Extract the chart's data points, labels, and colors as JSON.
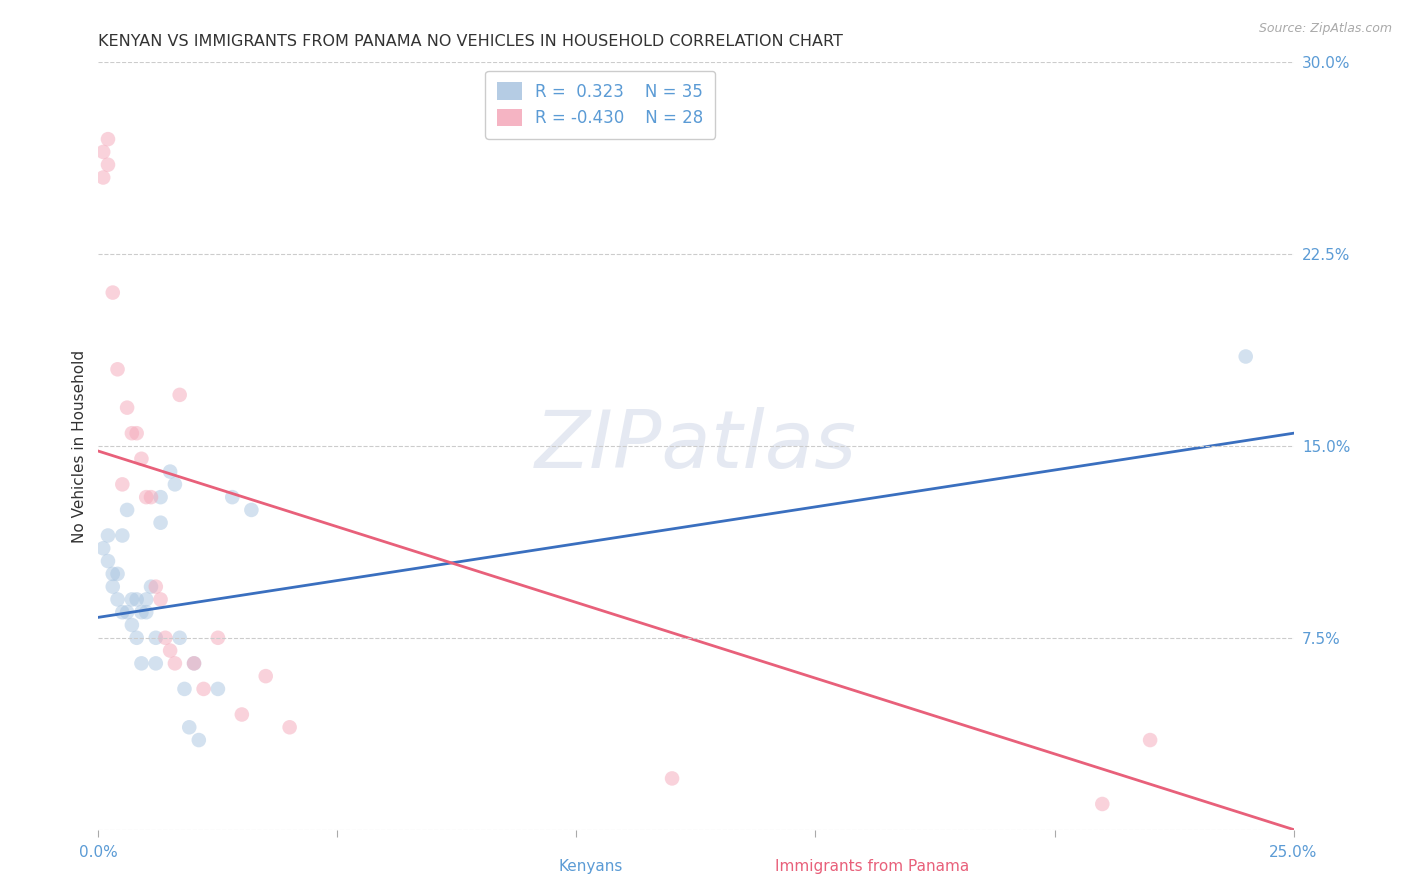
{
  "title": "KENYAN VS IMMIGRANTS FROM PANAMA NO VEHICLES IN HOUSEHOLD CORRELATION CHART",
  "source": "Source: ZipAtlas.com",
  "ylabel": "No Vehicles in Household",
  "xlabel_kenyans": "Kenyans",
  "xlabel_panama": "Immigrants from Panama",
  "xlim": [
    0.0,
    0.25
  ],
  "ylim": [
    0.0,
    0.3
  ],
  "x_ticks": [
    0.0,
    0.05,
    0.1,
    0.15,
    0.2,
    0.25
  ],
  "x_tick_labels": [
    "0.0%",
    "",
    "",
    "",
    "",
    "25.0%"
  ],
  "y_ticks": [
    0.0,
    0.075,
    0.15,
    0.225,
    0.3
  ],
  "y_tick_labels": [
    "",
    "7.5%",
    "15.0%",
    "22.5%",
    "30.0%"
  ],
  "kenyan_color": "#a8c4e0",
  "panama_color": "#f4a7b9",
  "kenyan_line_color": "#3a6fbf",
  "panama_line_color": "#e8607a",
  "legend_r_kenyan": "R =  0.323",
  "legend_n_kenyan": "N = 35",
  "legend_r_panama": "R = -0.430",
  "legend_n_panama": "N = 28",
  "kenyan_x": [
    0.001,
    0.002,
    0.002,
    0.003,
    0.003,
    0.004,
    0.004,
    0.005,
    0.005,
    0.006,
    0.006,
    0.007,
    0.007,
    0.008,
    0.008,
    0.009,
    0.009,
    0.01,
    0.01,
    0.011,
    0.012,
    0.012,
    0.013,
    0.013,
    0.015,
    0.016,
    0.017,
    0.018,
    0.019,
    0.02,
    0.021,
    0.025,
    0.028,
    0.032,
    0.24
  ],
  "kenyan_y": [
    0.11,
    0.115,
    0.105,
    0.1,
    0.095,
    0.1,
    0.09,
    0.115,
    0.085,
    0.125,
    0.085,
    0.09,
    0.08,
    0.09,
    0.075,
    0.085,
    0.065,
    0.09,
    0.085,
    0.095,
    0.075,
    0.065,
    0.13,
    0.12,
    0.14,
    0.135,
    0.075,
    0.055,
    0.04,
    0.065,
    0.035,
    0.055,
    0.13,
    0.125,
    0.185
  ],
  "panama_x": [
    0.001,
    0.001,
    0.002,
    0.002,
    0.003,
    0.004,
    0.005,
    0.006,
    0.007,
    0.008,
    0.009,
    0.01,
    0.011,
    0.012,
    0.013,
    0.014,
    0.015,
    0.016,
    0.017,
    0.02,
    0.022,
    0.025,
    0.03,
    0.035,
    0.04,
    0.12,
    0.21,
    0.22
  ],
  "panama_y": [
    0.265,
    0.255,
    0.27,
    0.26,
    0.21,
    0.18,
    0.135,
    0.165,
    0.155,
    0.155,
    0.145,
    0.13,
    0.13,
    0.095,
    0.09,
    0.075,
    0.07,
    0.065,
    0.17,
    0.065,
    0.055,
    0.075,
    0.045,
    0.06,
    0.04,
    0.02,
    0.01,
    0.035
  ],
  "kenyan_line_x0": 0.0,
  "kenyan_line_y0": 0.083,
  "kenyan_line_x1": 0.25,
  "kenyan_line_y1": 0.155,
  "panama_line_x0": 0.0,
  "panama_line_y0": 0.148,
  "panama_line_x1": 0.25,
  "panama_line_y1": 0.0,
  "background_color": "#ffffff",
  "grid_color": "#cccccc",
  "watermark_text": "ZIPatlas",
  "marker_size": 110,
  "marker_alpha": 0.5,
  "title_fontsize": 11.5,
  "axis_label_fontsize": 11,
  "tick_fontsize": 11,
  "legend_fontsize": 12
}
